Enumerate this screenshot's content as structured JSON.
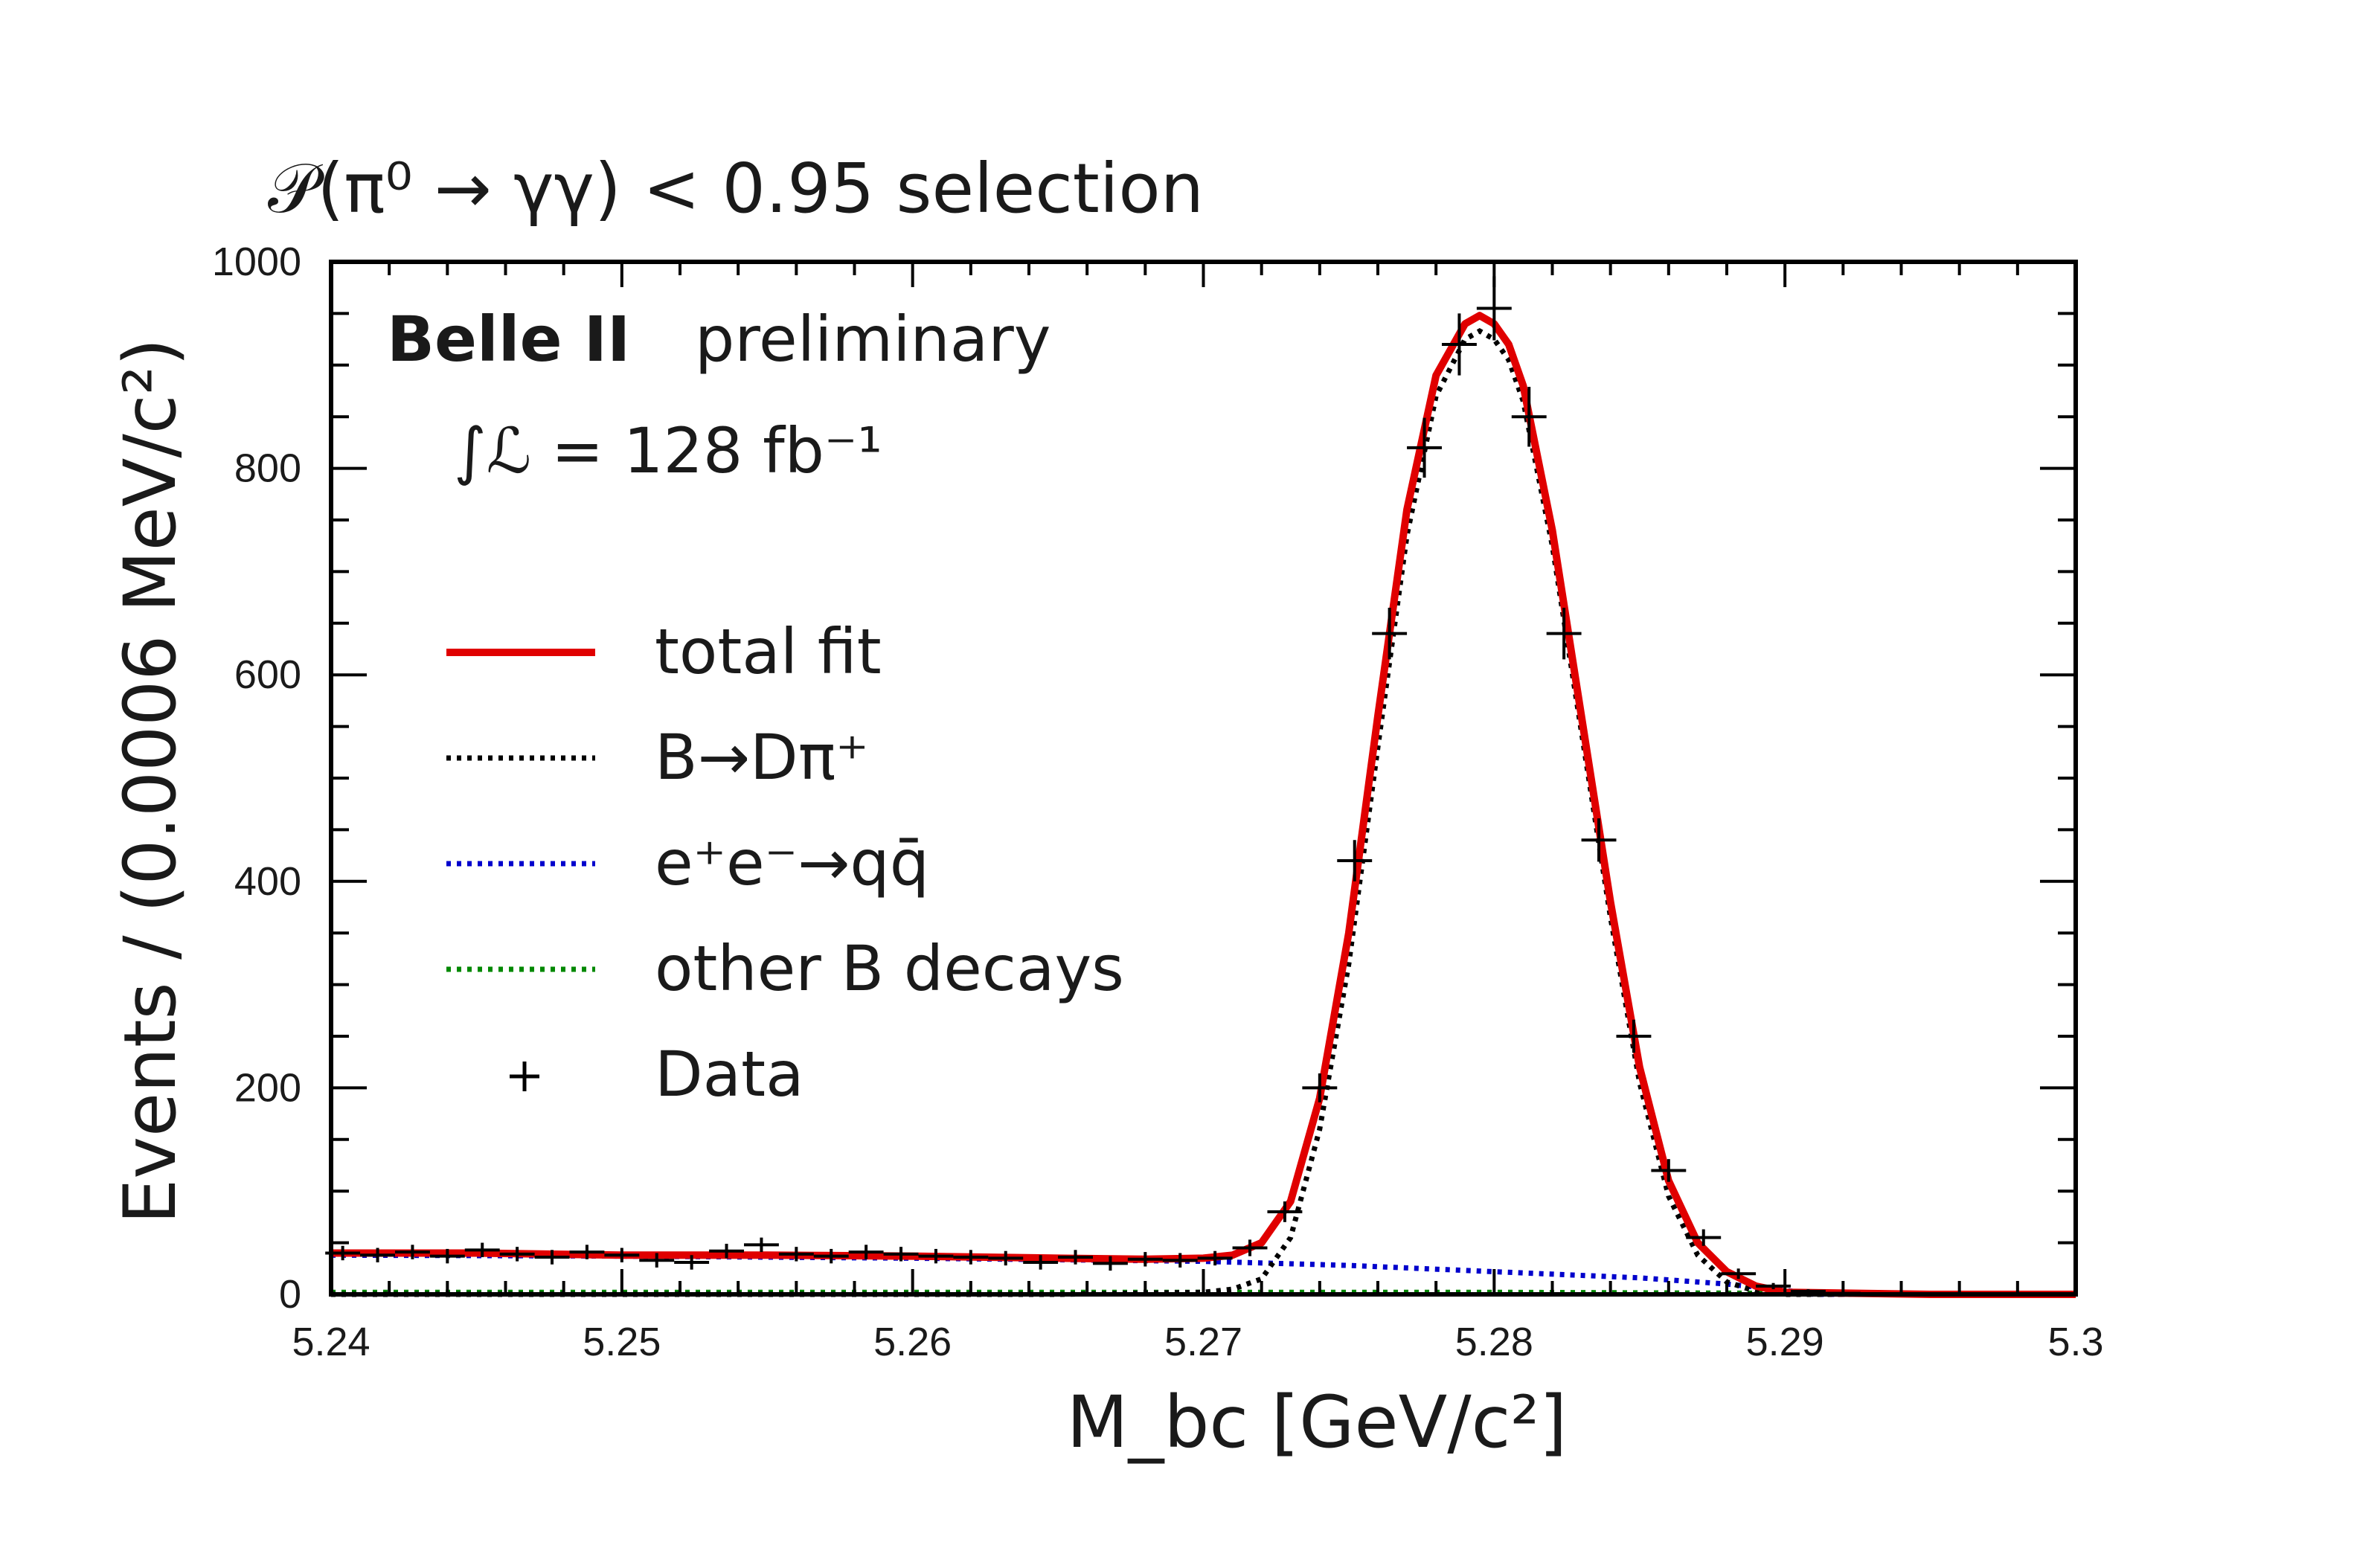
{
  "chart_data": {
    "type": "line",
    "title": "𝒫(π⁰ → γγ) < 0.95 selection",
    "experiment": "Belle II",
    "experiment_status": "preliminary",
    "luminosity_label": "∫ℒ = 128 fb⁻¹",
    "xlabel": "M_bc [GeV/c²]",
    "ylabel": "Events / (0.0006 MeV/c²)",
    "xlim": [
      5.24,
      5.3
    ],
    "ylim": [
      0,
      1000
    ],
    "x_ticks": [
      {
        "value": 5.24,
        "label": "5.24"
      },
      {
        "value": 5.25,
        "label": "5.25"
      },
      {
        "value": 5.26,
        "label": "5.26"
      },
      {
        "value": 5.27,
        "label": "5.27"
      },
      {
        "value": 5.28,
        "label": "5.28"
      },
      {
        "value": 5.29,
        "label": "5.29"
      },
      {
        "value": 5.3,
        "label": "5.3"
      }
    ],
    "y_ticks": [
      {
        "value": 0,
        "label": "0"
      },
      {
        "value": 200,
        "label": "200"
      },
      {
        "value": 400,
        "label": "400"
      },
      {
        "value": 600,
        "label": "600"
      },
      {
        "value": 800,
        "label": "800"
      },
      {
        "value": 1000,
        "label": "1000"
      }
    ],
    "legend": [
      {
        "key": "total",
        "label": "total fit",
        "color": "#e00000",
        "style": "solid"
      },
      {
        "key": "signal",
        "label": "B→Dπ⁺",
        "color": "#000000",
        "style": "dotted"
      },
      {
        "key": "qqbar",
        "label": "e⁺e⁻→qq̄",
        "color": "#0000cc",
        "style": "dotted"
      },
      {
        "key": "otherB",
        "label": "other B decays",
        "color": "#008800",
        "style": "dotted"
      },
      {
        "key": "data",
        "label": "Data",
        "color": "#000000",
        "style": "marker"
      }
    ],
    "series": [
      {
        "key": "total",
        "x": [
          5.24,
          5.245,
          5.25,
          5.255,
          5.26,
          5.265,
          5.268,
          5.27,
          5.271,
          5.272,
          5.273,
          5.274,
          5.275,
          5.276,
          5.277,
          5.278,
          5.279,
          5.2795,
          5.28,
          5.2805,
          5.281,
          5.282,
          5.283,
          5.284,
          5.285,
          5.286,
          5.287,
          5.288,
          5.289,
          5.29,
          5.295,
          5.3
        ],
        "y": [
          40,
          40,
          38,
          38,
          37,
          35,
          34,
          35,
          38,
          50,
          90,
          190,
          350,
          560,
          760,
          890,
          940,
          948,
          940,
          920,
          880,
          740,
          560,
          380,
          220,
          110,
          50,
          22,
          8,
          2,
          0,
          0
        ]
      },
      {
        "key": "signal",
        "x": [
          5.24,
          5.265,
          5.27,
          5.271,
          5.272,
          5.273,
          5.274,
          5.275,
          5.276,
          5.277,
          5.278,
          5.279,
          5.2795,
          5.28,
          5.2805,
          5.281,
          5.282,
          5.283,
          5.284,
          5.285,
          5.286,
          5.287,
          5.288,
          5.289,
          5.29,
          5.3
        ],
        "y": [
          0,
          0,
          2,
          5,
          15,
          55,
          160,
          320,
          530,
          735,
          870,
          925,
          933,
          925,
          905,
          865,
          725,
          545,
          365,
          205,
          95,
          38,
          12,
          3,
          0,
          0
        ]
      },
      {
        "key": "qqbar",
        "x": [
          5.24,
          5.25,
          5.26,
          5.27,
          5.275,
          5.28,
          5.285,
          5.288,
          5.29,
          5.291,
          5.3
        ],
        "y": [
          38,
          37,
          35,
          32,
          28,
          22,
          16,
          10,
          4,
          0,
          0
        ]
      },
      {
        "key": "otherB",
        "x": [
          5.24,
          5.26,
          5.28,
          5.29,
          5.3
        ],
        "y": [
          2,
          2,
          2,
          1,
          0
        ]
      }
    ],
    "data_points": {
      "key": "data",
      "x": [
        5.2404,
        5.2416,
        5.2428,
        5.244,
        5.2452,
        5.2464,
        5.2476,
        5.2488,
        5.25,
        5.2512,
        5.2524,
        5.2536,
        5.2548,
        5.256,
        5.2572,
        5.2584,
        5.2596,
        5.2608,
        5.262,
        5.2632,
        5.2644,
        5.2656,
        5.2668,
        5.268,
        5.2692,
        5.2704,
        5.2716,
        5.2728,
        5.274,
        5.2752,
        5.2764,
        5.2776,
        5.2788,
        5.28,
        5.2812,
        5.2824,
        5.2836,
        5.2848,
        5.286,
        5.2872,
        5.2884,
        5.2896,
        5.2908,
        5.292,
        5.2932,
        5.2944,
        5.2956,
        5.2968,
        5.298,
        5.2992
      ],
      "y": [
        40,
        38,
        41,
        37,
        43,
        39,
        36,
        41,
        38,
        33,
        31,
        42,
        48,
        39,
        37,
        41,
        39,
        37,
        36,
        35,
        31,
        36,
        30,
        34,
        33,
        35,
        45,
        80,
        200,
        420,
        640,
        820,
        920,
        955,
        850,
        640,
        440,
        250,
        120,
        55,
        20,
        8,
        3,
        1,
        0,
        0,
        0,
        0,
        0,
        0
      ],
      "yerr": [
        7,
        7,
        7,
        7,
        7,
        7,
        7,
        7,
        7,
        7,
        7,
        7,
        7,
        7,
        7,
        7,
        7,
        7,
        7,
        7,
        7,
        7,
        7,
        7,
        7,
        7,
        8,
        10,
        14,
        20,
        25,
        29,
        30,
        31,
        29,
        25,
        21,
        16,
        11,
        8,
        5,
        3,
        2,
        1,
        0,
        0,
        0,
        0,
        0,
        0
      ]
    },
    "grid": false,
    "legend_position": "left"
  }
}
